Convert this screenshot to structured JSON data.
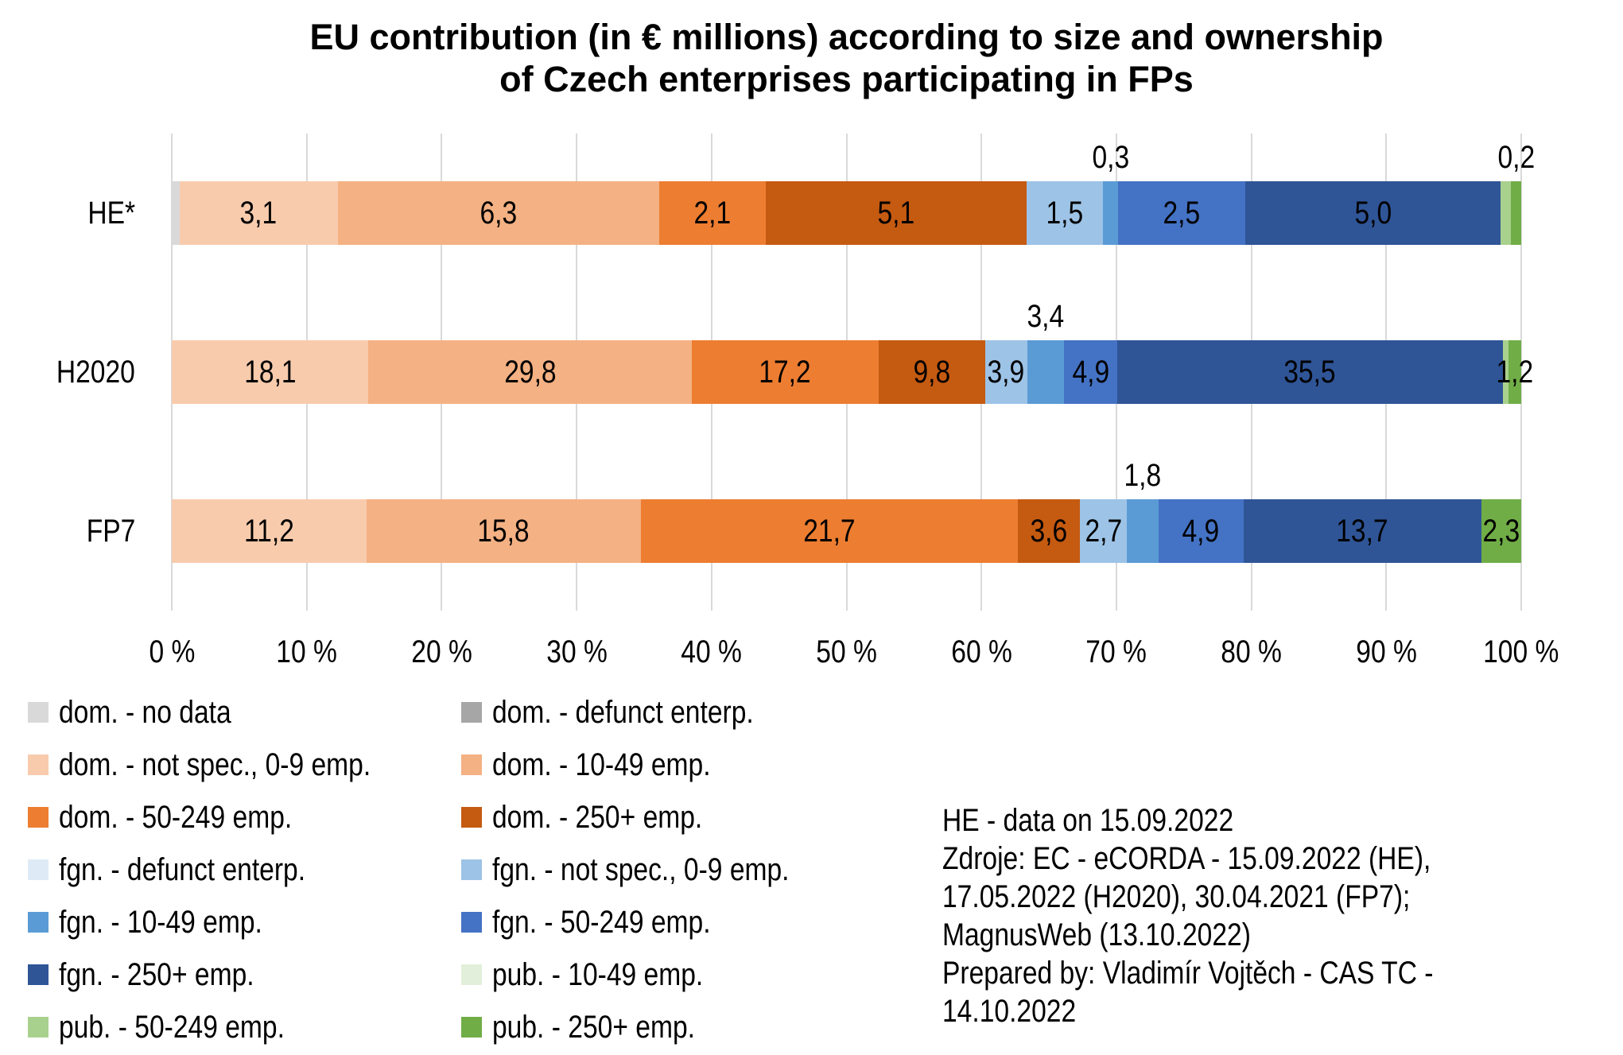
{
  "title": {
    "line1": "EU contribution (in € millions) according to size and ownership",
    "line2": "of Czech enterprises participating in FPs"
  },
  "chart_data": {
    "type": "bar",
    "orientation": "horizontal",
    "stacking": "100%",
    "value_unit": "€ millions",
    "labels_format": "absolute EU contribution in € millions, decimal comma; bar widths are % of programme total",
    "x_axis": {
      "tick_labels": [
        "0 %",
        "10 %",
        "20 %",
        "30 %",
        "40 %",
        "50 %",
        "60 %",
        "70 %",
        "80 %",
        "90 %",
        "100 %"
      ],
      "range_pct": [
        0,
        100
      ],
      "gridlines": true,
      "gridline_color": "#D9D9D9"
    },
    "categories": [
      "HE*",
      "H2020",
      "FP7"
    ],
    "series_colors": {
      "dom. - no data": "#D9D9D9",
      "dom. - defunct enterp.": "#A6A6A6",
      "dom. - not spec., 0-9 emp.": "#F8CBAD",
      "dom. - 10-49 emp.": "#F4B183",
      "dom. - 50-249 emp.": "#ED7D31",
      "dom. - 250+ emp.": "#C55A11",
      "fgn. - defunct enterp.": "#DEEBF7",
      "fgn. - not spec., 0-9 emp.": "#9DC3E6",
      "fgn. - 10-49 emp.": "#5B9BD5",
      "fgn. - 50-249 emp.": "#4472C4",
      "fgn. - 250+ emp.": "#2F5597",
      "pub. - 10-49 emp.": "#E2EFDA",
      "pub. - 50-249 emp.": "#A9D18E",
      "pub. - 250+ emp.": "#70AD47"
    },
    "bars": [
      {
        "category": "HE*",
        "segments": [
          {
            "series": "dom. - no data",
            "value": 0.15,
            "label": "",
            "label_pos": "none",
            "estimated": true
          },
          {
            "series": "dom. - not spec., 0-9 emp.",
            "value": 3.1,
            "label": "3,1",
            "label_pos": "inside"
          },
          {
            "series": "dom. - 10-49 emp.",
            "value": 6.3,
            "label": "6,3",
            "label_pos": "inside"
          },
          {
            "series": "dom. - 50-249 emp.",
            "value": 2.1,
            "label": "2,1",
            "label_pos": "inside"
          },
          {
            "series": "dom. - 250+ emp.",
            "value": 5.1,
            "label": "5,1",
            "label_pos": "inside"
          },
          {
            "series": "fgn. - not spec., 0-9 emp.",
            "value": 1.5,
            "label": "1,5",
            "label_pos": "inside"
          },
          {
            "series": "fgn. - 10-49 emp.",
            "value": 0.3,
            "label": "0,3",
            "label_pos": "above"
          },
          {
            "series": "fgn. - 50-249 emp.",
            "value": 2.5,
            "label": "2,5",
            "label_pos": "inside"
          },
          {
            "series": "fgn. - 250+ emp.",
            "value": 5.0,
            "label": "5,0",
            "label_pos": "inside"
          },
          {
            "series": "pub. - 50-249 emp.",
            "value": 0.2,
            "label": "",
            "label_pos": "none",
            "estimated": true
          },
          {
            "series": "pub. - 250+ emp.",
            "value": 0.2,
            "label": "0,2",
            "label_pos": "above"
          }
        ]
      },
      {
        "category": "H2020",
        "segments": [
          {
            "series": "dom. - not spec., 0-9 emp.",
            "value": 18.1,
            "label": "18,1",
            "label_pos": "inside"
          },
          {
            "series": "dom. - 10-49 emp.",
            "value": 29.8,
            "label": "29,8",
            "label_pos": "inside"
          },
          {
            "series": "dom. - 50-249 emp.",
            "value": 17.2,
            "label": "17,2",
            "label_pos": "inside"
          },
          {
            "series": "dom. - 250+ emp.",
            "value": 9.8,
            "label": "9,8",
            "label_pos": "inside"
          },
          {
            "series": "fgn. - not spec., 0-9 emp.",
            "value": 3.9,
            "label": "3,9",
            "label_pos": "inside"
          },
          {
            "series": "fgn. - 10-49 emp.",
            "value": 3.4,
            "label": "3,4",
            "label_pos": "above"
          },
          {
            "series": "fgn. - 50-249 emp.",
            "value": 4.9,
            "label": "4,9",
            "label_pos": "inside"
          },
          {
            "series": "fgn. - 250+ emp.",
            "value": 35.5,
            "label": "35,5",
            "label_pos": "inside"
          },
          {
            "series": "pub. - 50-249 emp.",
            "value": 0.5,
            "label": "",
            "label_pos": "none",
            "estimated": true
          },
          {
            "series": "pub. - 250+ emp.",
            "value": 1.2,
            "label": "1,2",
            "label_pos": "inside"
          }
        ]
      },
      {
        "category": "FP7",
        "segments": [
          {
            "series": "dom. - not spec., 0-9 emp.",
            "value": 11.2,
            "label": "11,2",
            "label_pos": "inside"
          },
          {
            "series": "dom. - 10-49 emp.",
            "value": 15.8,
            "label": "15,8",
            "label_pos": "inside"
          },
          {
            "series": "dom. - 50-249 emp.",
            "value": 21.7,
            "label": "21,7",
            "label_pos": "inside"
          },
          {
            "series": "dom. - 250+ emp.",
            "value": 3.6,
            "label": "3,6",
            "label_pos": "inside"
          },
          {
            "series": "fgn. - not spec., 0-9 emp.",
            "value": 2.7,
            "label": "2,7",
            "label_pos": "inside"
          },
          {
            "series": "fgn. - 10-49 emp.",
            "value": 1.8,
            "label": "1,8",
            "label_pos": "above"
          },
          {
            "series": "fgn. - 50-249 emp.",
            "value": 4.9,
            "label": "4,9",
            "label_pos": "inside"
          },
          {
            "series": "fgn. - 250+ emp.",
            "value": 13.7,
            "label": "13,7",
            "label_pos": "inside"
          },
          {
            "series": "pub. - 250+ emp.",
            "value": 2.3,
            "label": "2,3",
            "label_pos": "inside"
          }
        ]
      }
    ]
  },
  "legend": {
    "columns": [
      [
        "dom. - no data",
        "dom. - not spec., 0-9 emp.",
        "dom. - 50-249 emp.",
        "fgn. - defunct enterp.",
        "fgn. - 10-49 emp.",
        "fgn. - 250+ emp.",
        "pub. - 50-249 emp."
      ],
      [
        "dom. - defunct enterp.",
        "dom. - 10-49 emp.",
        "dom. - 250+ emp.",
        "fgn. - not spec., 0-9 emp.",
        "fgn. - 50-249 emp.",
        "pub. - 10-49 emp.",
        "pub. - 250+ emp."
      ]
    ]
  },
  "notes": {
    "lines": [
      "HE - data on 15.09.2022",
      "Zdroje: EC - eCORDA - 15.09.2022 (HE),",
      "17.05.2022 (H2020), 30.04.2021 (FP7);",
      "MagnusWeb (13.10.2022)",
      "Prepared by: Vladimír Vojtěch - CAS TC -",
      "14.10.2022"
    ]
  }
}
